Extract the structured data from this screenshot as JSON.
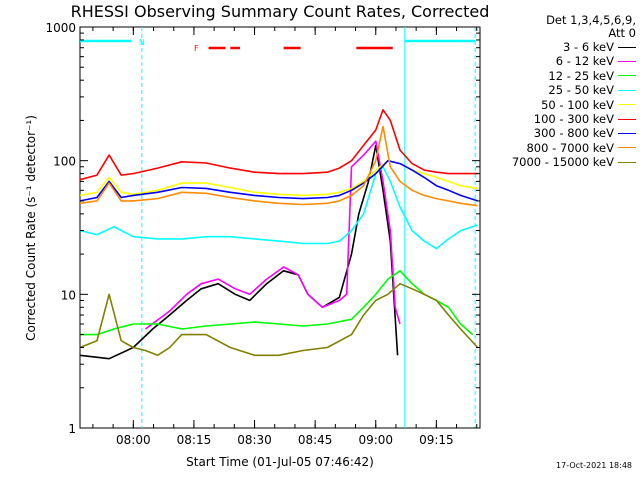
{
  "chart_data": {
    "type": "line",
    "title": "RHESSI Observing Summary Count Rates, Corrected",
    "xlabel": "Start Time (01-Jul-05 07:46:42)",
    "ylabel": "Corrected Count Rate (s⁻¹ detector⁻¹)",
    "y_scale": "log",
    "ylim": [
      1,
      1000
    ],
    "xlim_minutes": [
      7.78,
      9.43
    ],
    "x_tick_labels": [
      "08:00",
      "08:15",
      "08:30",
      "08:45",
      "09:00",
      "09:15"
    ],
    "x_tick_hours": [
      8.0,
      8.25,
      8.5,
      8.75,
      9.0,
      9.25
    ],
    "y_tick_labels": [
      "1",
      "10",
      "100",
      "1000"
    ],
    "y_tick_values": [
      1,
      10,
      100,
      1000
    ],
    "grid": false,
    "legend_location": "top-right, outside plot",
    "legend_header": [
      "Det 1,3,4,5,6,9,",
      "Att 0"
    ],
    "flags": {
      "N_label": "N",
      "F_label": "F",
      "night_bar_color": "#00ffff",
      "flare_bar_color": "#ff0000"
    },
    "series": [
      {
        "name": "3 - 6 keV",
        "color": "#000000",
        "x": [
          7.78,
          7.9,
          8.0,
          8.08,
          8.15,
          8.22,
          8.28,
          8.35,
          8.42,
          8.48,
          8.55,
          8.62,
          8.68,
          8.72,
          8.78,
          8.85,
          8.9,
          8.93,
          8.97,
          9.0,
          9.03,
          9.06,
          9.09
        ],
        "values": [
          3.5,
          3.3,
          4.0,
          5.5,
          7.0,
          9.0,
          11.0,
          12.0,
          10.0,
          9.0,
          12.0,
          15.0,
          14.0,
          10.0,
          8.0,
          9.5,
          20.0,
          40.0,
          70.0,
          130.0,
          60.0,
          25.0,
          3.5
        ]
      },
      {
        "name": "6 - 12 keV",
        "color": "#ff00ff",
        "x": [
          8.05,
          8.15,
          8.22,
          8.28,
          8.35,
          8.42,
          8.48,
          8.55,
          8.62,
          8.68,
          8.72,
          8.78,
          8.85,
          8.88,
          8.9,
          8.95,
          9.0,
          9.03,
          9.06,
          9.08,
          9.1
        ],
        "values": [
          5.5,
          7.5,
          10.0,
          12.0,
          13.0,
          11.0,
          10.0,
          13.0,
          16.0,
          14.0,
          10.0,
          8.0,
          9.0,
          10.0,
          90.0,
          110.0,
          140.0,
          70.0,
          30.0,
          8.0,
          6.0
        ]
      },
      {
        "name": "12 - 25 keV",
        "color": "#00ff00",
        "x": [
          7.78,
          7.85,
          7.92,
          8.0,
          8.1,
          8.2,
          8.3,
          8.4,
          8.5,
          8.6,
          8.7,
          8.8,
          8.9,
          8.95,
          9.0,
          9.05,
          9.1,
          9.15,
          9.2,
          9.25,
          9.3,
          9.35,
          9.4
        ],
        "values": [
          5.0,
          5.0,
          5.5,
          6.0,
          6.0,
          5.5,
          5.8,
          6.0,
          6.2,
          6.0,
          5.8,
          6.0,
          6.5,
          8.0,
          10.0,
          13.0,
          15.0,
          12.0,
          10.0,
          9.0,
          8.0,
          6.0,
          5.0
        ]
      },
      {
        "name": "25 - 50 keV",
        "color": "#00ffff",
        "x": [
          7.78,
          7.85,
          7.92,
          8.0,
          8.1,
          8.2,
          8.3,
          8.4,
          8.5,
          8.6,
          8.7,
          8.8,
          8.85,
          8.9,
          8.95,
          9.0,
          9.03,
          9.06,
          9.1,
          9.15,
          9.2,
          9.25,
          9.3,
          9.35,
          9.42
        ],
        "values": [
          30.0,
          28.0,
          32.0,
          27.0,
          26.0,
          26.0,
          27.0,
          27.0,
          26.0,
          25.0,
          24.0,
          24.0,
          25.0,
          30.0,
          40.0,
          80.0,
          90.0,
          70.0,
          45.0,
          30.0,
          25.0,
          22.0,
          26.0,
          30.0,
          33.0
        ]
      },
      {
        "name": "50 - 100 keV",
        "color": "#ffff00",
        "x": [
          7.78,
          7.85,
          7.9,
          7.95,
          8.0,
          8.1,
          8.2,
          8.3,
          8.4,
          8.5,
          8.6,
          8.7,
          8.8,
          8.85,
          8.9,
          8.95,
          9.0,
          9.05,
          9.1,
          9.15,
          9.2,
          9.25,
          9.3,
          9.35,
          9.42
        ],
        "values": [
          55.0,
          58.0,
          75.0,
          58.0,
          56.0,
          60.0,
          68.0,
          68.0,
          63.0,
          58.0,
          56.0,
          55.0,
          56.0,
          58.0,
          62.0,
          70.0,
          85.0,
          100.0,
          95.0,
          85.0,
          80.0,
          75.0,
          70.0,
          65.0,
          62.0
        ]
      },
      {
        "name": "100 - 300 keV",
        "color": "#ff0000",
        "x": [
          7.78,
          7.85,
          7.9,
          7.95,
          8.0,
          8.1,
          8.2,
          8.3,
          8.4,
          8.5,
          8.6,
          8.7,
          8.8,
          8.85,
          8.9,
          8.95,
          9.0,
          9.03,
          9.06,
          9.1,
          9.15,
          9.2,
          9.25,
          9.3,
          9.35,
          9.42
        ],
        "values": [
          72.0,
          78.0,
          110.0,
          78.0,
          80.0,
          88.0,
          98.0,
          96.0,
          88.0,
          82.0,
          80.0,
          80.0,
          82.0,
          88.0,
          100.0,
          130.0,
          170.0,
          240.0,
          200.0,
          120.0,
          95.0,
          85.0,
          82.0,
          80.0,
          80.0,
          80.0
        ]
      },
      {
        "name": "300 - 800 keV",
        "color": "#0000ff",
        "x": [
          7.78,
          7.85,
          7.9,
          7.95,
          8.0,
          8.1,
          8.2,
          8.3,
          8.4,
          8.5,
          8.6,
          8.7,
          8.8,
          8.85,
          8.9,
          8.95,
          9.0,
          9.05,
          9.1,
          9.15,
          9.2,
          9.25,
          9.3,
          9.35,
          9.42
        ],
        "values": [
          50.0,
          53.0,
          70.0,
          53.0,
          55.0,
          58.0,
          63.0,
          62.0,
          58.0,
          55.0,
          53.0,
          52.0,
          53.0,
          55.0,
          60.0,
          68.0,
          80.0,
          100.0,
          95.0,
          85.0,
          75.0,
          65.0,
          60.0,
          55.0,
          50.0
        ]
      },
      {
        "name": "800 - 7000 keV",
        "color": "#ff8c00",
        "x": [
          7.78,
          7.85,
          7.9,
          7.95,
          8.0,
          8.1,
          8.2,
          8.3,
          8.4,
          8.5,
          8.6,
          8.7,
          8.8,
          8.85,
          8.9,
          8.95,
          9.0,
          9.03,
          9.06,
          9.1,
          9.15,
          9.2,
          9.25,
          9.3,
          9.35,
          9.42
        ],
        "values": [
          48.0,
          50.0,
          68.0,
          50.0,
          50.0,
          52.0,
          58.0,
          57.0,
          53.0,
          50.0,
          48.0,
          47.0,
          48.0,
          50.0,
          55.0,
          65.0,
          100.0,
          180.0,
          90.0,
          70.0,
          60.0,
          55.0,
          52.0,
          50.0,
          48.0,
          46.0
        ]
      },
      {
        "name": "7000 - 15000 keV",
        "color": "#808000",
        "x": [
          7.78,
          7.85,
          7.9,
          7.95,
          8.0,
          8.05,
          8.1,
          8.15,
          8.2,
          8.3,
          8.4,
          8.5,
          8.6,
          8.7,
          8.8,
          8.9,
          8.95,
          9.0,
          9.05,
          9.1,
          9.15,
          9.2,
          9.25,
          9.3,
          9.35,
          9.42
        ],
        "values": [
          4.0,
          4.5,
          10.0,
          4.5,
          4.0,
          3.8,
          3.5,
          4.0,
          5.0,
          5.0,
          4.0,
          3.5,
          3.5,
          3.8,
          4.0,
          5.0,
          7.0,
          9.0,
          10.0,
          12.0,
          11.0,
          10.0,
          9.0,
          7.0,
          5.5,
          4.0
        ]
      }
    ]
  },
  "legend": {
    "header_1": "Det 1,3,4,5,6,9,",
    "header_2": "Att 0",
    "items": [
      {
        "label": "3 - 6 keV",
        "color": "#000000"
      },
      {
        "label": "6 - 12 keV",
        "color": "#ff00ff"
      },
      {
        "label": "12 - 25 keV",
        "color": "#00ff00"
      },
      {
        "label": "25 - 50 keV",
        "color": "#00ffff"
      },
      {
        "label": "50 - 100 keV",
        "color": "#ffff00"
      },
      {
        "label": "100 - 300 keV",
        "color": "#ff0000"
      },
      {
        "label": "300 - 800 keV",
        "color": "#0000ff"
      },
      {
        "label": "800 - 7000 keV",
        "color": "#ff8c00"
      },
      {
        "label": "7000 - 15000 keV",
        "color": "#808000"
      }
    ]
  },
  "footer": {
    "timestamp": "17-Oct-2021 18:48"
  }
}
